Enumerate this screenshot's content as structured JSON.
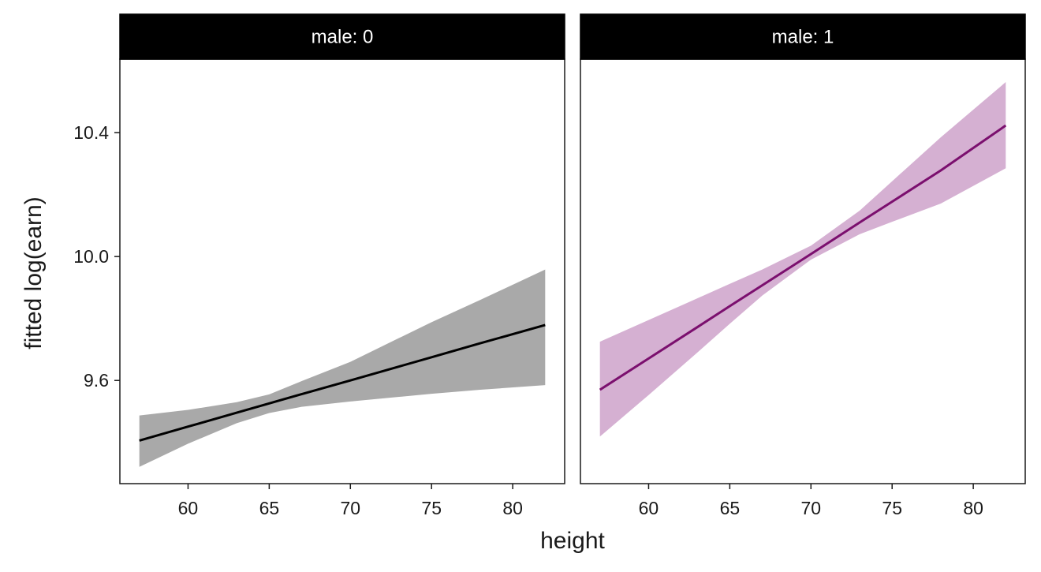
{
  "chart_data": [
    {
      "type": "line",
      "facet_label": "male: 0",
      "xlabel": "height",
      "ylabel": "fitted log(earn)",
      "xlim": [
        55.8,
        83.2
      ],
      "ylim": [
        9.267,
        10.637
      ],
      "xticks": [
        60,
        65,
        70,
        75,
        80
      ],
      "yticks": [
        9.6,
        10.0,
        10.4
      ],
      "ytick_labels": [
        "9.6",
        "10.0",
        "10.4"
      ],
      "grid": false,
      "line_color": "#000000",
      "ribbon_color": "#a9a9a9",
      "series": [
        {
          "x": [
            57,
            60,
            63,
            65,
            67,
            70,
            73,
            75,
            78,
            82
          ],
          "y": [
            9.406,
            9.451,
            9.496,
            9.526,
            9.556,
            9.6,
            9.645,
            9.675,
            9.72,
            9.779
          ],
          "lower": [
            9.321,
            9.396,
            9.462,
            9.495,
            9.515,
            9.532,
            9.547,
            9.557,
            9.57,
            9.585
          ],
          "upper": [
            9.487,
            9.505,
            9.53,
            9.555,
            9.598,
            9.66,
            9.737,
            9.788,
            9.86,
            9.958
          ]
        }
      ]
    },
    {
      "type": "line",
      "facet_label": "male: 1",
      "xlabel": "height",
      "ylabel": "fitted log(earn)",
      "xlim": [
        55.8,
        83.2
      ],
      "ylim": [
        9.267,
        10.637
      ],
      "xticks": [
        60,
        65,
        70,
        75,
        80
      ],
      "yticks": [
        9.6,
        10.0,
        10.4
      ],
      "ytick_labels": [
        "9.6",
        "10.0",
        "10.4"
      ],
      "grid": false,
      "line_color": "#7b0f6e",
      "ribbon_color": "#d5b0d2",
      "series": [
        {
          "x": [
            57,
            60,
            63,
            65,
            67,
            70,
            73,
            75,
            78,
            82
          ],
          "y": [
            9.57,
            9.671,
            9.772,
            9.84,
            9.907,
            10.008,
            10.11,
            10.177,
            10.278,
            10.423
          ],
          "lower": [
            9.419,
            9.553,
            9.69,
            9.783,
            9.874,
            9.99,
            10.072,
            10.112,
            10.171,
            10.285
          ],
          "upper": [
            9.725,
            9.795,
            9.865,
            9.912,
            9.958,
            10.035,
            10.148,
            10.243,
            10.385,
            10.563
          ]
        }
      ]
    }
  ]
}
